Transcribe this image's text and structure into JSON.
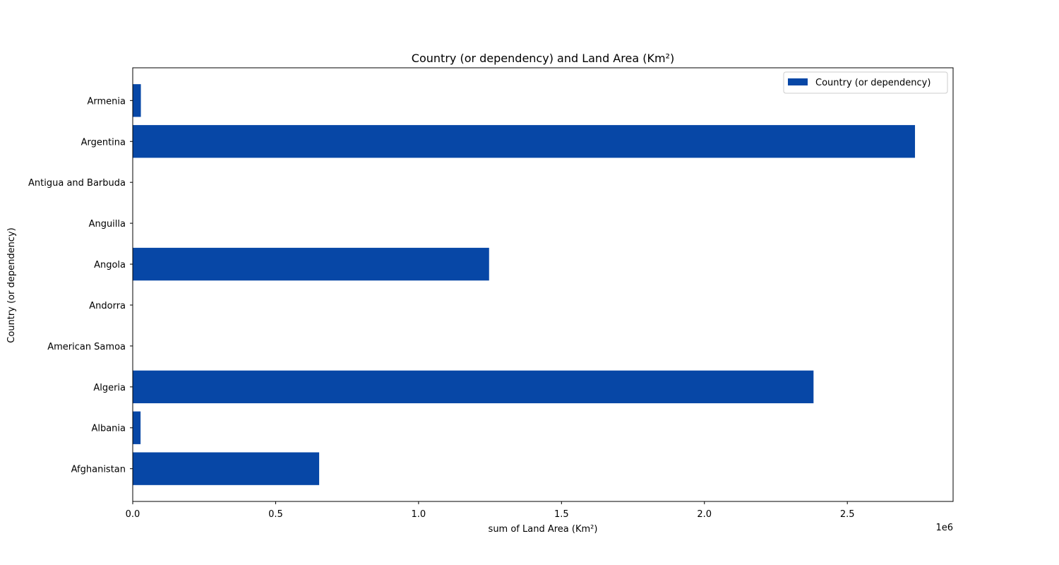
{
  "chart_data": {
    "type": "bar",
    "orientation": "horizontal",
    "title": "Country (or dependency) and Land Area (Km²)",
    "xlabel": "sum of Land Area (Km²)",
    "ylabel": "Country (or dependency)",
    "x_offset_label": "1e6",
    "x_scale_factor": 1000000,
    "xlim": [
      0,
      2870000
    ],
    "x_ticks": [
      0,
      500000,
      1000000,
      1500000,
      2000000,
      2500000
    ],
    "x_tick_labels": [
      "0.0",
      "0.5",
      "1.0",
      "1.5",
      "2.0",
      "2.5"
    ],
    "categories": [
      "Afghanistan",
      "Albania",
      "Algeria",
      "American Samoa",
      "Andorra",
      "Angola",
      "Anguilla",
      "Antigua and Barbuda",
      "Argentina",
      "Armenia"
    ],
    "series": [
      {
        "name": "Country (or dependency)",
        "color": "#0747a6",
        "values": [
          652230,
          27400,
          2381740,
          200,
          470,
          1246700,
          90,
          440,
          2736690,
          28470
        ]
      }
    ],
    "legend_position": "top-right",
    "grid": false
  }
}
